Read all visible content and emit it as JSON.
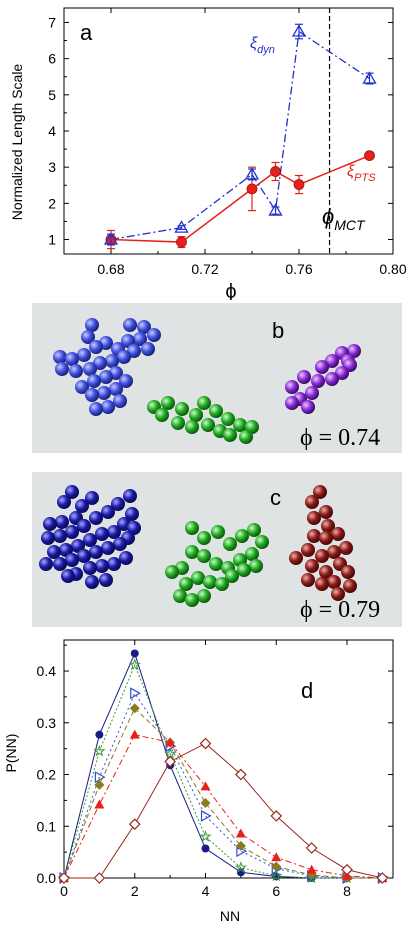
{
  "panel_a": {
    "letter": "a",
    "ylabel": "Normalized Length Scale",
    "xlabel": "ϕ",
    "xticks": [
      "0.68",
      "0.72",
      "0.76",
      "0.80"
    ],
    "yticks": [
      "1",
      "2",
      "3",
      "4",
      "5",
      "6",
      "7"
    ],
    "series_dyn_label": "ξ",
    "series_dyn_sub": "dyn",
    "series_pts_label": "ξ",
    "series_pts_sub": "PTS",
    "mct_label": "ϕ",
    "mct_sub": "MCT"
  },
  "panel_b": {
    "letter": "b",
    "phi_label": "ϕ = 0.74"
  },
  "panel_c": {
    "letter": "c",
    "phi_label": "ϕ = 0.79"
  },
  "panel_d": {
    "letter": "d",
    "ylabel": "P(NN)",
    "xlabel": "NN",
    "xticks": [
      "0",
      "2",
      "4",
      "6",
      "8"
    ],
    "yticks": [
      "0.0",
      "0.1",
      "0.2",
      "0.3",
      "0.4"
    ]
  },
  "colors": {
    "dyn": "#2233cc",
    "pts": "#e8201a",
    "cluster_blue_b": "#3f4fe0",
    "cluster_green": "#22aa22",
    "cluster_purple": "#8a2bd6",
    "cluster_navy_c": "#1a1aa8",
    "cluster_maroon": "#8b1a1a",
    "panel_bg": "#dfe3e3"
  },
  "chart_data": [
    {
      "type": "line",
      "xlabel": "ϕ",
      "ylabel": "Normalized Length Scale",
      "xlim": [
        0.66,
        0.8
      ],
      "ylim": [
        0.6,
        7.4
      ],
      "vline": 0.773,
      "series": [
        {
          "name": "ξdyn",
          "marker": "open-triangle",
          "x": [
            0.68,
            0.71,
            0.74,
            0.75,
            0.76,
            0.79
          ],
          "y": [
            1.0,
            1.33,
            2.8,
            1.8,
            6.75,
            5.45
          ],
          "yerr": [
            0.15,
            0.05,
            0.15,
            0.1,
            0.2,
            0.15
          ]
        },
        {
          "name": "ξPTS",
          "marker": "filled-circle",
          "x": [
            0.68,
            0.71,
            0.74,
            0.75,
            0.76,
            0.79
          ],
          "y": [
            1.0,
            0.93,
            2.4,
            2.88,
            2.52,
            3.32
          ],
          "yerr": [
            0.25,
            0.15,
            0.6,
            0.25,
            0.25,
            0.05
          ]
        }
      ]
    },
    {
      "type": "line",
      "xlabel": "NN",
      "ylabel": "P(NN)",
      "xlim": [
        0,
        9.3
      ],
      "ylim": [
        0,
        0.46
      ],
      "series": [
        {
          "color": "#1a1a8a",
          "marker": "filled-circle",
          "x": [
            0,
            1,
            2,
            3,
            4,
            5,
            6,
            7,
            8,
            9
          ],
          "y": [
            0,
            0.277,
            0.434,
            0.218,
            0.057,
            0.011,
            0.003,
            0,
            0,
            0
          ]
        },
        {
          "color": "#3a9a3a",
          "marker": "star",
          "x": [
            0,
            1,
            2,
            3,
            4,
            5,
            6,
            7,
            8,
            9
          ],
          "y": [
            0,
            0.245,
            0.412,
            0.24,
            0.08,
            0.02,
            0.004,
            0,
            0,
            0
          ]
        },
        {
          "color": "#2f4fd8",
          "marker": "open-triangle-right",
          "x": [
            0,
            1,
            2,
            3,
            4,
            5,
            6,
            7,
            8,
            9
          ],
          "y": [
            0,
            0.195,
            0.357,
            0.255,
            0.12,
            0.052,
            0.018,
            0.004,
            0,
            0
          ]
        },
        {
          "color": "#8a7a20",
          "marker": "diamond",
          "x": [
            0,
            1,
            2,
            3,
            4,
            5,
            6,
            7,
            8,
            9
          ],
          "y": [
            0,
            0.18,
            0.328,
            0.262,
            0.145,
            0.062,
            0.022,
            0.006,
            0,
            0
          ]
        },
        {
          "color": "#e8201a",
          "marker": "filled-triangle",
          "x": [
            0,
            1,
            2,
            3,
            4,
            5,
            6,
            7,
            8,
            9
          ],
          "y": [
            0,
            0.142,
            0.277,
            0.262,
            0.177,
            0.086,
            0.04,
            0.016,
            0.004,
            0
          ]
        },
        {
          "color": "#9a2a1a",
          "marker": "open-diamond",
          "x": [
            0,
            1,
            2,
            3,
            4,
            5,
            6,
            7,
            8,
            9
          ],
          "y": [
            0,
            0,
            0.104,
            0.225,
            0.26,
            0.2,
            0.12,
            0.058,
            0.016,
            0
          ]
        }
      ]
    }
  ]
}
